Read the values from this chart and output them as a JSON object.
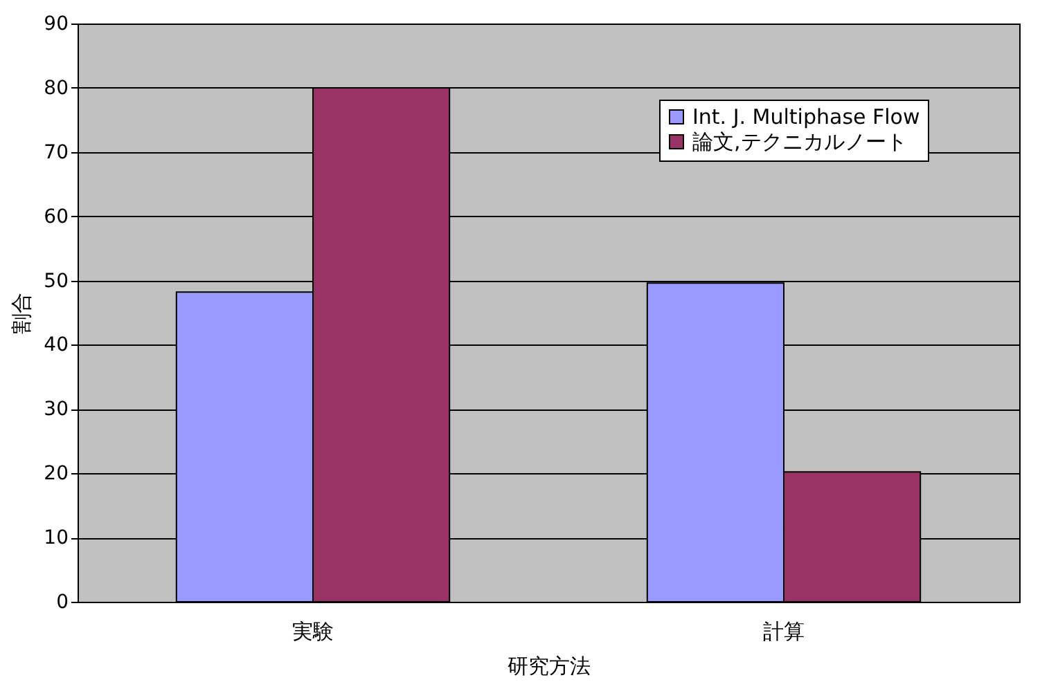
{
  "chart_data": {
    "type": "bar",
    "xlabel": "研究方法",
    "ylabel": "割合",
    "categories": [
      "実験",
      "計算"
    ],
    "series": [
      {
        "name": "Int. J. Multiphase Flow",
        "color": "#9999ff",
        "values": [
          48.2,
          49.6
        ]
      },
      {
        "name": "論文,テクニカルノート",
        "color": "#993366",
        "values": [
          80,
          20.2
        ]
      }
    ],
    "ylim": [
      0,
      90
    ],
    "yticks": [
      0,
      10,
      20,
      30,
      40,
      50,
      60,
      70,
      80,
      90
    ],
    "grid": "y",
    "legend": "top right"
  }
}
